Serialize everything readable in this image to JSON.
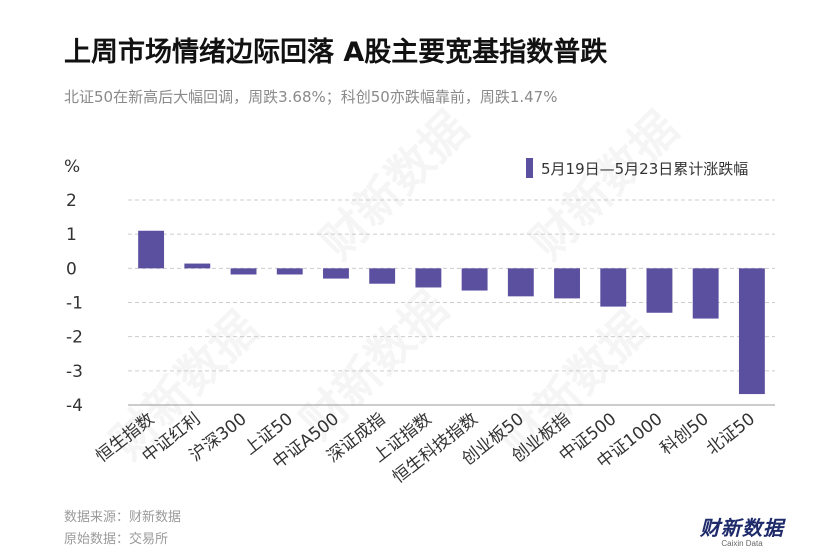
{
  "header": {
    "title": "上周市场情绪边际回落 A股主要宽基指数普跌",
    "subtitle": "北证50在新高后大幅回调，周跌3.68%；科创50亦跌幅靠前，周跌1.47%"
  },
  "footer": {
    "source": "数据来源：财新数据",
    "original": "原始数据：交易所"
  },
  "logo": {
    "cn": "财新数据",
    "en": "Caixin Data"
  },
  "watermark": "财新数据",
  "colors": {
    "bar": "#5b4fa0",
    "grid": "#cccccc",
    "axis_text": "#333333"
  },
  "chart_data": {
    "type": "bar",
    "ylabel": "%",
    "ylim": [
      -4,
      2
    ],
    "yticks": [
      2,
      1,
      0,
      -1,
      -2,
      -3,
      -4
    ],
    "grid": true,
    "legend_position": "top-right",
    "categories": [
      "恒生指数",
      "中证红利",
      "沪深300",
      "上证50",
      "中证A500",
      "深证成指",
      "上证指数",
      "恒生科技指数",
      "创业板50",
      "创业板指",
      "中证500",
      "中证1000",
      "科创50",
      "北证50"
    ],
    "series": [
      {
        "name": "5月19日—5月23日累计涨跌幅",
        "values": [
          1.1,
          0.14,
          -0.18,
          -0.18,
          -0.3,
          -0.45,
          -0.56,
          -0.65,
          -0.82,
          -0.88,
          -1.12,
          -1.3,
          -1.47,
          -3.68
        ]
      }
    ]
  }
}
